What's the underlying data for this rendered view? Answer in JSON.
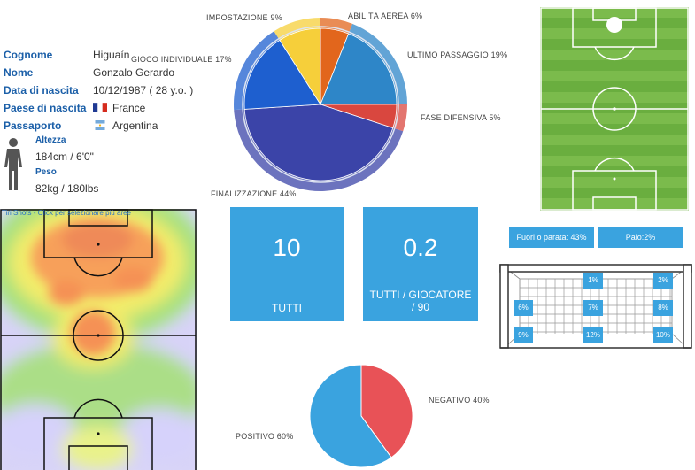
{
  "profile": {
    "rows": [
      {
        "label": "Cognome",
        "value": "Higuaín"
      },
      {
        "label": "Nome",
        "value": "Gonzalo Gerardo"
      },
      {
        "label": "Data di nascita",
        "value": "10/12/1987 ( 28 y.o. )"
      },
      {
        "label": "Paese di nascita",
        "value": "France"
      },
      {
        "label": "Passaporto",
        "value": "Argentina"
      }
    ],
    "height_label": "Altezza",
    "height_value": "184cm / 6'0\"",
    "weight_label": "Peso",
    "weight_value": "82kg / 180lbs",
    "flag_icons": [
      "france-flag-icon",
      "argentina-flag-icon"
    ]
  },
  "action_donut": {
    "labels": [
      "IMPOSTAZIONE 9%",
      "ABILITÀ AEREA 6%",
      "GIOCO INDIVIDUALE 17%",
      "ULTIMO PASSAGGIO 19%",
      "FASE DIFENSIVA 5%",
      "FINALIZZAZIONE 44%"
    ]
  },
  "heatmap": {
    "hint": "Tiri Shots - Click per selezionare più aree"
  },
  "stats": {
    "total_value": "10",
    "total_label": "TUTTI",
    "per_player_value": "0.2",
    "per_player_label_1": "TUTTI / GIOCATORE",
    "per_player_label_2": "/ 90"
  },
  "goal": {
    "outside_label": "Fuori o parata: 43%",
    "post_label": "Palo:2%",
    "cells": {
      "top_center": "1%",
      "top_right": "2%",
      "mid_left": "6%",
      "mid_center": "7%",
      "mid_right": "8%",
      "bot_left": "9%",
      "bot_center": "12%",
      "bot_right": "10%"
    }
  },
  "outcome_pie": {
    "positive_label": "POSITIVO 60%",
    "negative_label": "NEGATIVO 40%"
  },
  "chart_data": [
    {
      "type": "pie",
      "categories": [
        "FINALIZZAZIONE",
        "GIOCO INDIVIDUALE",
        "IMPOSTAZIONE",
        "ABILITÀ AEREA",
        "ULTIMO PASSAGGIO",
        "FASE DIFENSIVA"
      ],
      "values": [
        44,
        17,
        9,
        6,
        19,
        5
      ],
      "colors": [
        "#3b44a8",
        "#1e5fcf",
        "#f6cf3a",
        "#e2661c",
        "#2e86c8",
        "#d9473f"
      ]
    },
    {
      "type": "pie",
      "categories": [
        "POSITIVO",
        "NEGATIVO"
      ],
      "values": [
        60,
        40
      ],
      "colors": [
        "#3aa3df",
        "#e85257"
      ]
    }
  ],
  "colors": {
    "accent": "#3aa3df",
    "label_blue": "#1b5fa8",
    "pitch_green": "#6fb345"
  }
}
